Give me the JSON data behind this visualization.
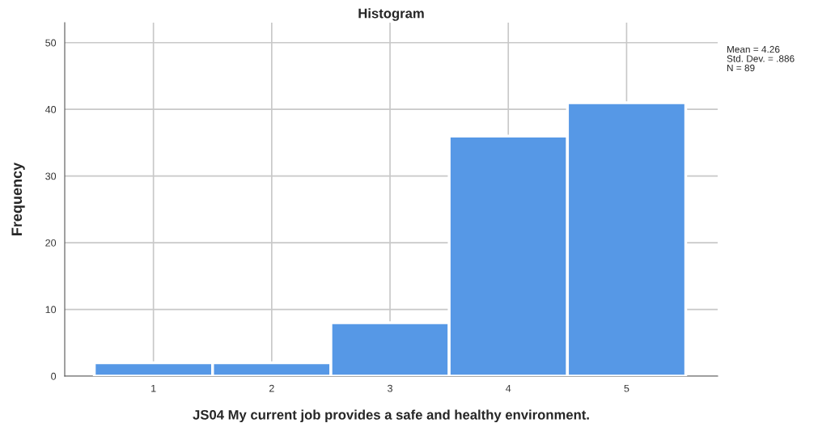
{
  "chart_data": {
    "type": "histogram",
    "title": "Histogram",
    "xlabel": "JS04 My current job provides a safe and healthy environment.",
    "ylabel": "Frequency",
    "bins": [
      0.5,
      1.5,
      2.5,
      3.5,
      4.5,
      5.5
    ],
    "values": [
      2,
      2,
      8,
      36,
      41
    ],
    "color": "#5698e6",
    "xlim": [
      0.25,
      5.77
    ],
    "xticks": [
      1,
      2,
      3,
      4,
      5
    ],
    "ylim": [
      0,
      53
    ],
    "yticks": [
      0,
      10,
      20,
      30,
      40,
      50
    ],
    "grid": true,
    "annotations": [
      "Mean = 4.26",
      "Std. Dev. = .886",
      "N = 89"
    ]
  }
}
